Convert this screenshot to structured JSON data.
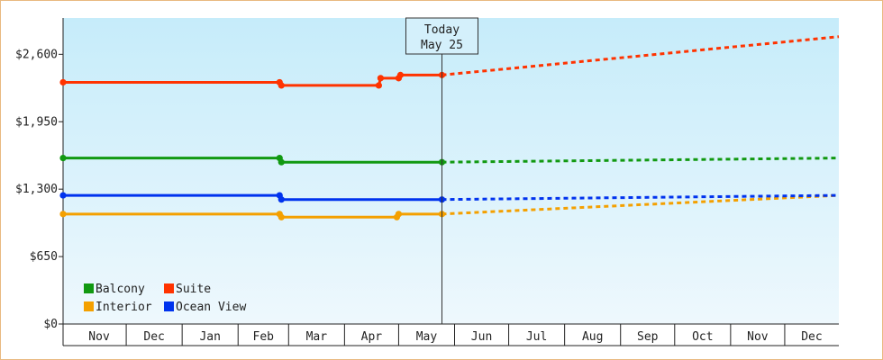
{
  "chart_data": {
    "type": "line",
    "currency_prefix": "$",
    "yticks": [
      0,
      650,
      1300,
      1950,
      2600
    ],
    "ylim": [
      0,
      2950
    ],
    "xlim": [
      "2024-10-27",
      "2025-12-31"
    ],
    "months": [
      {
        "label": "Nov",
        "start": "2024-11-01"
      },
      {
        "label": "Dec",
        "start": "2024-12-01"
      },
      {
        "label": "Jan",
        "start": "2025-01-01"
      },
      {
        "label": "Feb",
        "start": "2025-02-01"
      },
      {
        "label": "Mar",
        "start": "2025-03-01"
      },
      {
        "label": "Apr",
        "start": "2025-04-01"
      },
      {
        "label": "May",
        "start": "2025-05-01"
      },
      {
        "label": "Jun",
        "start": "2025-06-01"
      },
      {
        "label": "Jul",
        "start": "2025-07-01"
      },
      {
        "label": "Aug",
        "start": "2025-08-01"
      },
      {
        "label": "Sep",
        "start": "2025-09-01"
      },
      {
        "label": "Oct",
        "start": "2025-10-01"
      },
      {
        "label": "Nov",
        "start": "2025-11-01"
      },
      {
        "label": "Dec",
        "start": "2025-12-01"
      }
    ],
    "today": {
      "date": "2025-05-25",
      "label_line1": "Today",
      "label_line2": "May 25"
    },
    "series": [
      {
        "name": "Balcony",
        "color": "#119911",
        "history": [
          [
            "2024-10-27",
            1600
          ],
          [
            "2025-02-24",
            1600
          ],
          [
            "2025-02-25",
            1560
          ],
          [
            "2025-05-25",
            1560
          ]
        ],
        "forecast": [
          [
            "2025-05-25",
            1560
          ],
          [
            "2025-12-31",
            1600
          ]
        ]
      },
      {
        "name": "Suite",
        "color": "#ff3300",
        "history": [
          [
            "2024-10-27",
            2330
          ],
          [
            "2025-02-24",
            2330
          ],
          [
            "2025-02-25",
            2300
          ],
          [
            "2025-04-20",
            2300
          ],
          [
            "2025-04-21",
            2370
          ],
          [
            "2025-05-01",
            2370
          ],
          [
            "2025-05-02",
            2400
          ],
          [
            "2025-05-25",
            2400
          ]
        ],
        "forecast": [
          [
            "2025-05-25",
            2400
          ],
          [
            "2025-12-31",
            2770
          ]
        ]
      },
      {
        "name": "Interior",
        "color": "#f4a000",
        "history": [
          [
            "2024-10-27",
            1060
          ],
          [
            "2025-02-24",
            1060
          ],
          [
            "2025-02-25",
            1030
          ],
          [
            "2025-04-30",
            1030
          ],
          [
            "2025-05-01",
            1060
          ],
          [
            "2025-05-25",
            1060
          ]
        ],
        "forecast": [
          [
            "2025-05-25",
            1060
          ],
          [
            "2025-12-31",
            1240
          ]
        ]
      },
      {
        "name": "Ocean View",
        "color": "#0033ee",
        "history": [
          [
            "2024-10-27",
            1240
          ],
          [
            "2025-02-24",
            1240
          ],
          [
            "2025-02-25",
            1200
          ],
          [
            "2025-05-25",
            1200
          ]
        ],
        "forecast": [
          [
            "2025-05-25",
            1200
          ],
          [
            "2025-12-31",
            1240
          ]
        ]
      }
    ],
    "legend": [
      "Balcony",
      "Suite",
      "Interior",
      "Ocean View"
    ],
    "legend_placement": "bottom-left",
    "grid": false,
    "title": "",
    "xlabel": "",
    "ylabel": ""
  }
}
